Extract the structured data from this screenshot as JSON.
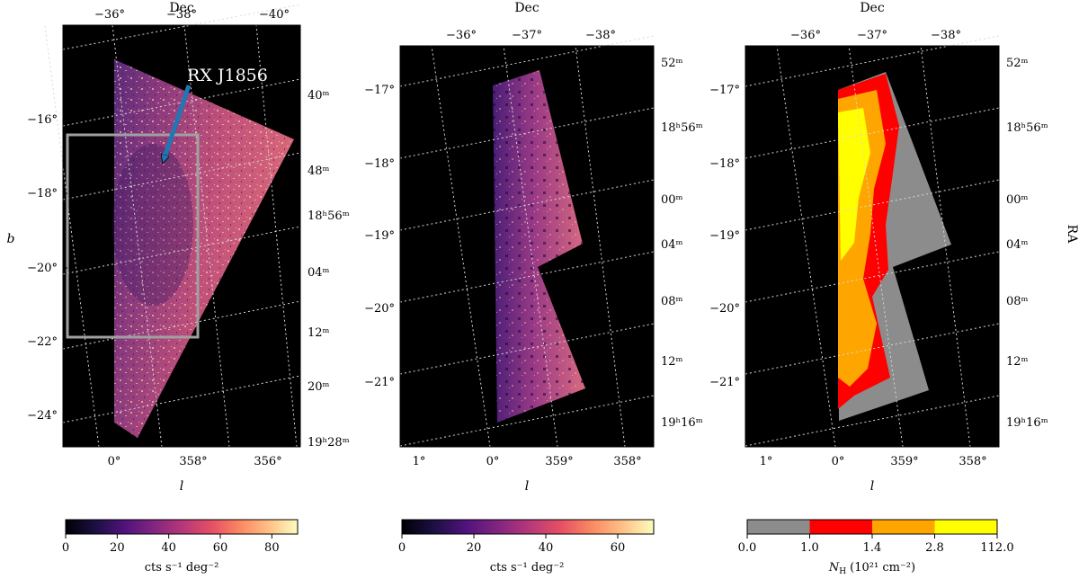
{
  "chart_data": [
    {
      "type": "heatmap",
      "panel": "left",
      "top_axis_label": "Dec",
      "xlabel": "l",
      "ylabel": "b",
      "right_axis_label": "",
      "top_ticks": [
        "−36°",
        "−38°",
        "−40°"
      ],
      "right_ticks": [
        "40m",
        "48m",
        "18h56m",
        "04m",
        "12m",
        "20m",
        "19h28m"
      ],
      "right_tick_display": [
        "40ᵐ",
        "48ᵐ",
        "18ʰ56ᵐ",
        "04ᵐ",
        "12ᵐ",
        "20ᵐ",
        "19ʰ28ᵐ"
      ],
      "left_ticks": [
        "−16°",
        "−18°",
        "−20°",
        "−22°",
        "−24°"
      ],
      "bottom_ticks": [
        "0°",
        "358°",
        "356°"
      ],
      "annotation": {
        "text": "RX J1856",
        "arrow_color": "#1f77b4"
      },
      "inset_box_color": "#a0a0a0",
      "colorbar": {
        "colormap": "magma",
        "range": [
          0,
          90
        ],
        "ticks": [
          0,
          20,
          40,
          60,
          80
        ],
        "label": "cts s⁻¹ deg⁻²"
      },
      "background": "#000000"
    },
    {
      "type": "heatmap",
      "panel": "middle",
      "top_axis_label": "Dec",
      "xlabel": "l",
      "top_ticks": [
        "−36°",
        "−37°",
        "−38°"
      ],
      "left_ticks": [
        "−17°",
        "−18°",
        "−19°",
        "−20°",
        "−21°"
      ],
      "right_ticks": [
        "52m",
        "18h56m",
        "00m",
        "04m",
        "08m",
        "12m",
        "19h16m"
      ],
      "right_tick_display": [
        "52ᵐ",
        "18ʰ56ᵐ",
        "00ᵐ",
        "04ᵐ",
        "08ᵐ",
        "12ᵐ",
        "19ʰ16ᵐ"
      ],
      "bottom_ticks": [
        "1°",
        "0°",
        "359°",
        "358°"
      ],
      "colorbar": {
        "colormap": "magma",
        "range": [
          0,
          70
        ],
        "ticks": [
          0,
          20,
          40,
          60
        ],
        "label": "cts s⁻¹ deg⁻²"
      },
      "background": "#000000"
    },
    {
      "type": "heatmap",
      "panel": "right",
      "top_axis_label": "Dec",
      "xlabel": "l",
      "right_axis_label": "RA",
      "top_ticks": [
        "−36°",
        "−37°",
        "−38°"
      ],
      "left_ticks": [
        "−17°",
        "−18°",
        "−19°",
        "−20°",
        "−21°"
      ],
      "right_ticks": [
        "52m",
        "18h56m",
        "00m",
        "04m",
        "08m",
        "12m",
        "19h16m"
      ],
      "right_tick_display": [
        "52ᵐ",
        "18ʰ56ᵐ",
        "00ᵐ",
        "04ᵐ",
        "08ᵐ",
        "12ᵐ",
        "19ʰ16ᵐ"
      ],
      "bottom_ticks": [
        "1°",
        "0°",
        "359°",
        "358°"
      ],
      "colorbar": {
        "colormap": "discrete",
        "boundaries": [
          "0.0",
          "1.0",
          "1.4",
          "2.8",
          "112.0"
        ],
        "colors": [
          "#8c8c8c",
          "#ff0000",
          "#ffa500",
          "#ffff00"
        ],
        "label_main": "N",
        "label_sub": "H",
        "label_units": "(10²¹ cm⁻²)"
      },
      "background": "#000000"
    }
  ]
}
